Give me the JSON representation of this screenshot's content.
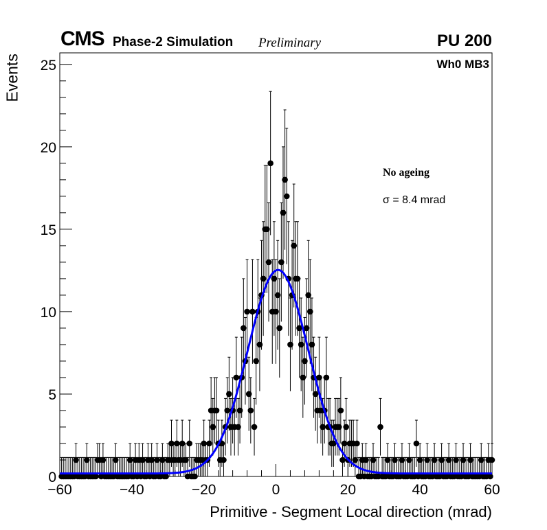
{
  "header": {
    "experiment": "CMS",
    "subtitle": "Phase-2 Simulation",
    "status": "Preliminary",
    "pileup": "PU 200",
    "region": "Wh0 MB3"
  },
  "annotations": {
    "condition": "No ageing",
    "resolution_symbol": "σ",
    "resolution_text": " = 8.4 mrad"
  },
  "chart_data": {
    "type": "scatter",
    "title": "",
    "xlabel": "Primitive - Segment Local direction (mrad)",
    "ylabel": "Events",
    "xlim": [
      -60,
      60
    ],
    "ylim": [
      0,
      25.7
    ],
    "x_ticks": [
      -60,
      -40,
      -20,
      0,
      20,
      40,
      60
    ],
    "x_tick_labels": [
      "−60",
      "−40",
      "−20",
      "0",
      "20",
      "40",
      "60"
    ],
    "y_ticks": [
      0,
      5,
      10,
      15,
      20,
      25
    ],
    "y_tick_labels": [
      "0",
      "5",
      "10",
      "15",
      "20",
      "25"
    ],
    "bin_width": 0.5,
    "series": [
      {
        "name": "Simulation (histogram)",
        "style": "points with sqrt(N) error bars",
        "color": "#000000",
        "points": [
          [
            -55.5,
            1
          ],
          [
            -52.5,
            1
          ],
          [
            -49.5,
            1
          ],
          [
            -49,
            1
          ],
          [
            -48,
            1
          ],
          [
            -44.5,
            1
          ],
          [
            -40.5,
            1
          ],
          [
            -39,
            1
          ],
          [
            -38,
            1
          ],
          [
            -37,
            1
          ],
          [
            -35.5,
            1
          ],
          [
            -34.5,
            1
          ],
          [
            -33,
            1
          ],
          [
            -31.5,
            1
          ],
          [
            -30,
            1
          ],
          [
            -29.5,
            1
          ],
          [
            -29,
            2
          ],
          [
            -28.5,
            1
          ],
          [
            -28,
            1
          ],
          [
            -27.5,
            2
          ],
          [
            -27,
            1
          ],
          [
            -26.5,
            1
          ],
          [
            -26,
            2
          ],
          [
            -25.5,
            1
          ],
          [
            -25,
            1
          ],
          [
            -24,
            2
          ],
          [
            -22,
            1
          ],
          [
            -21.5,
            1
          ],
          [
            -21,
            1
          ],
          [
            -20.5,
            1
          ],
          [
            -20,
            2
          ],
          [
            -19.5,
            1
          ],
          [
            -19,
            1
          ],
          [
            -18.5,
            2
          ],
          [
            -18,
            4
          ],
          [
            -17.5,
            3
          ],
          [
            -17,
            4
          ],
          [
            -16.5,
            4
          ],
          [
            -16,
            2
          ],
          [
            -15.5,
            1
          ],
          [
            -15,
            2
          ],
          [
            -14.5,
            1
          ],
          [
            -14,
            3
          ],
          [
            -13.5,
            4
          ],
          [
            -13,
            5
          ],
          [
            -12.5,
            3
          ],
          [
            -12,
            4
          ],
          [
            -11.5,
            3
          ],
          [
            -11,
            3
          ],
          [
            -10.5,
            3
          ],
          [
            -10,
            4
          ],
          [
            -9.5,
            6
          ],
          [
            -9,
            9
          ],
          [
            -8.5,
            7
          ],
          [
            -8,
            10
          ],
          [
            -7.5,
            5
          ],
          [
            -7,
            4
          ],
          [
            -6.5,
            6
          ],
          [
            -6,
            3
          ],
          [
            -5.5,
            7
          ],
          [
            -5,
            10
          ],
          [
            -4.5,
            8
          ],
          [
            -4,
            9
          ],
          [
            -3.5,
            12
          ],
          [
            -3,
            15
          ],
          [
            -2.5,
            14
          ],
          [
            -2,
            13
          ],
          [
            -1.5,
            11
          ],
          [
            -1,
            10
          ],
          [
            -0.5,
            12
          ],
          [
            0,
            10
          ],
          [
            0.5,
            11
          ],
          [
            1,
            9
          ],
          [
            1.5,
            13
          ],
          [
            2,
            16
          ],
          [
            2.5,
            18
          ],
          [
            3,
            15
          ],
          [
            3.5,
            12
          ],
          [
            4,
            8
          ],
          [
            4.5,
            11
          ],
          [
            5,
            14
          ],
          [
            5.5,
            12
          ],
          [
            6,
            10
          ],
          [
            6.5,
            9
          ],
          [
            7,
            8
          ],
          [
            7.5,
            6
          ],
          [
            8,
            7
          ],
          [
            8.5,
            9
          ],
          [
            9,
            11
          ],
          [
            9.5,
            10
          ],
          [
            10,
            8
          ],
          [
            10.5,
            6
          ],
          [
            11,
            5
          ],
          [
            11.5,
            4
          ],
          [
            12,
            6
          ],
          [
            12.5,
            4
          ],
          [
            13,
            3
          ],
          [
            13.5,
            4
          ],
          [
            14,
            4
          ],
          [
            14.5,
            3
          ],
          [
            15,
            3
          ],
          [
            15.5,
            2
          ],
          [
            16,
            2
          ],
          [
            16.5,
            3
          ],
          [
            17,
            2
          ],
          [
            17.5,
            3
          ],
          [
            18,
            2
          ],
          [
            18.5,
            1
          ],
          [
            19,
            2
          ],
          [
            19.5,
            1
          ],
          [
            20,
            1
          ],
          [
            20.5,
            2
          ],
          [
            21,
            2
          ],
          [
            21.5,
            2
          ],
          [
            22,
            1
          ],
          [
            22.5,
            2
          ],
          [
            24,
            1
          ],
          [
            25,
            1
          ],
          [
            27,
            1
          ],
          [
            29,
            3
          ],
          [
            31,
            1
          ],
          [
            33,
            1
          ],
          [
            35,
            1
          ],
          [
            37,
            1
          ],
          [
            39,
            2
          ],
          [
            40,
            1
          ],
          [
            42,
            1
          ],
          [
            44,
            1
          ],
          [
            46,
            1
          ],
          [
            48,
            1
          ],
          [
            50,
            1
          ],
          [
            52,
            1
          ],
          [
            54,
            1
          ],
          [
            57,
            1
          ],
          [
            59,
            1
          ],
          [
            60,
            1
          ],
          [
            -1.5,
            19
          ],
          [
            -2.5,
            15
          ],
          [
            3,
            17
          ],
          [
            0,
            7
          ],
          [
            -3,
            7
          ],
          [
            -0.5,
            8
          ],
          [
            -4,
            11
          ],
          [
            2,
            11
          ],
          [
            -6.5,
            10
          ],
          [
            6,
            12
          ],
          [
            -8,
            9
          ],
          [
            10,
            7
          ],
          [
            -11,
            6
          ],
          [
            14,
            6
          ],
          [
            -13,
            4
          ],
          [
            17,
            3
          ],
          [
            18,
            4
          ],
          [
            -15,
            2
          ],
          [
            19.5,
            3
          ]
        ]
      },
      {
        "name": "Gaussian fit",
        "style": "line",
        "color": "#0000ff",
        "mean": 0.6,
        "sigma": 8.4,
        "amplitude": 12.35,
        "baseline": 0.18
      }
    ],
    "legend": "none"
  }
}
